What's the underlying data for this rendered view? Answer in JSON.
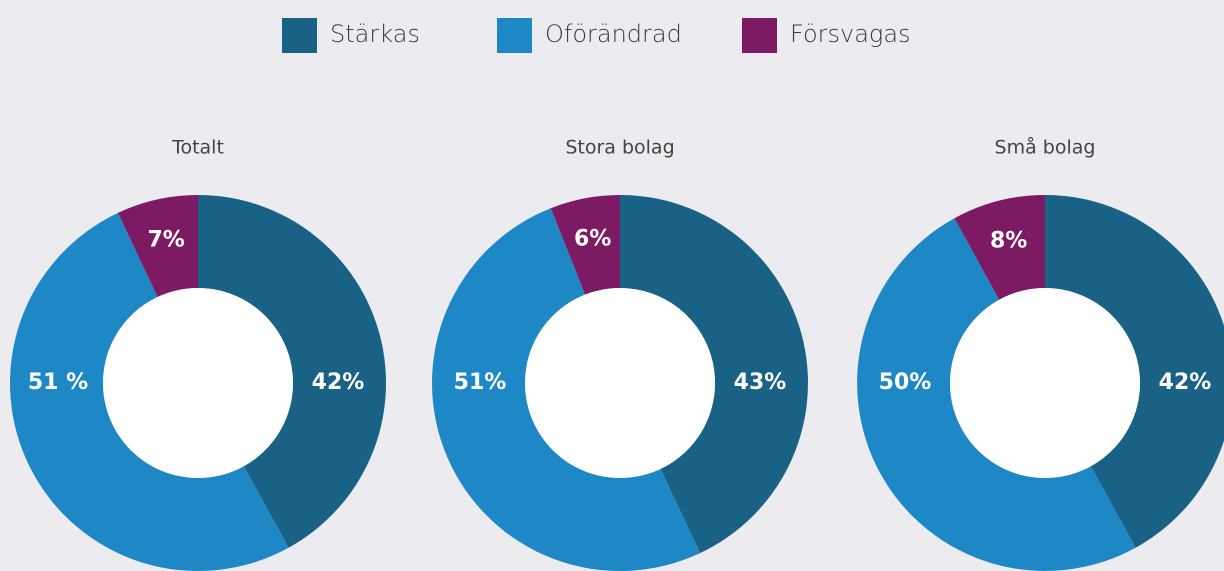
{
  "legend": [
    {
      "name": "Stärkas",
      "color": "#1a6186"
    },
    {
      "name": "Oförändrad",
      "color": "#1e88c7"
    },
    {
      "name": "Försvagas",
      "color": "#7c1b63"
    }
  ],
  "chart_data": [
    {
      "type": "pie",
      "title": "Totalt",
      "values": [
        42,
        51,
        7
      ],
      "value_labels": [
        "42%",
        "51 %",
        "7%"
      ]
    },
    {
      "type": "pie",
      "title": "Stora bolag",
      "values": [
        43,
        51,
        6
      ],
      "value_labels": [
        "43%",
        "51%",
        "6%"
      ]
    },
    {
      "type": "pie",
      "title": "Små bolag",
      "values": [
        42,
        50,
        8
      ],
      "value_labels": [
        "42%",
        "50%",
        "8%"
      ]
    }
  ]
}
